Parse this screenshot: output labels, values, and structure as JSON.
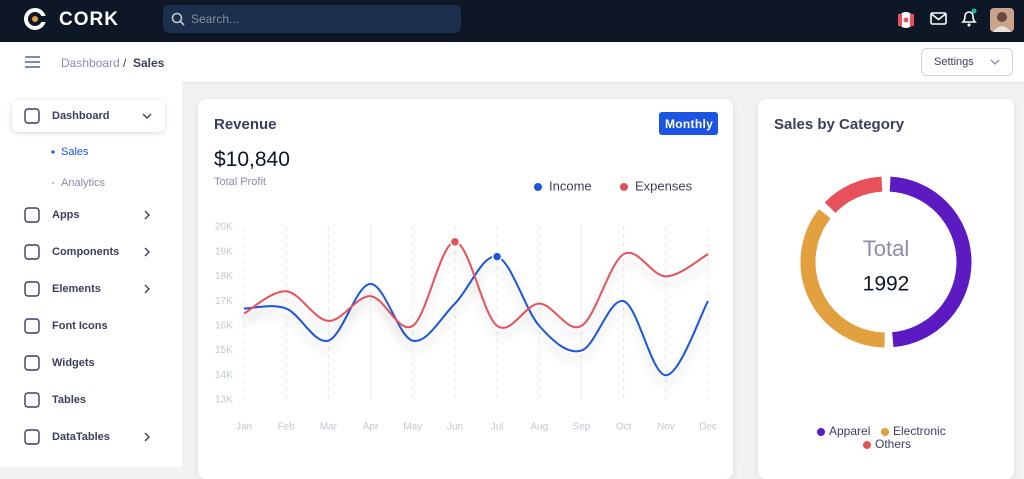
{
  "header": {
    "brand": "CORK",
    "search_placeholder": "Search..."
  },
  "subheader": {
    "breadcrumb": [
      "Dashboard",
      "Sales"
    ],
    "separator": "/",
    "settings_button": "Settings"
  },
  "sidebar": {
    "menu": [
      {
        "label": "Dashboard",
        "submenu": [
          "Sales",
          "Analytics"
        ]
      },
      {
        "label": "Apps"
      },
      {
        "label": "Components"
      },
      {
        "label": "Elements"
      },
      {
        "label": "Font Icons"
      },
      {
        "label": "Widgets"
      },
      {
        "label": "Tables"
      },
      {
        "label": "DataTables"
      }
    ]
  },
  "revenue_card": {
    "title": "Revenue",
    "button": "Monthly",
    "total": "$10,840",
    "total_label": "Total Profit"
  },
  "category_card": {
    "title": "Sales by Category"
  },
  "chart_data": [
    {
      "type": "line",
      "categories": [
        "Jan",
        "Feb",
        "Mar",
        "Apr",
        "May",
        "Jun",
        "Jul",
        "Aug",
        "Sep",
        "Oct",
        "Nov",
        "Dec"
      ],
      "series": [
        {
          "name": "Income",
          "color": "#1b55e2",
          "values": [
            16700,
            16700,
            15400,
            17700,
            15400,
            16900,
            18800,
            16000,
            15000,
            17000,
            14000,
            17000
          ]
        },
        {
          "name": "Expenses",
          "color": "#e7515a",
          "values": [
            16500,
            17400,
            16200,
            17200,
            16000,
            19400,
            16000,
            16900,
            16000,
            18900,
            18000,
            18900
          ]
        }
      ],
      "ylim": [
        13000,
        20000
      ],
      "yticks": [
        {
          "value": 13000,
          "label": "13K"
        },
        {
          "value": 14000,
          "label": "14K"
        },
        {
          "value": 15000,
          "label": "15K"
        },
        {
          "value": 16000,
          "label": "16K"
        },
        {
          "value": 17000,
          "label": "17K"
        },
        {
          "value": 18000,
          "label": "18K"
        },
        {
          "value": 19000,
          "label": "19K"
        },
        {
          "value": 20000,
          "label": "20K"
        }
      ],
      "xgrid": true,
      "legend": "top-right"
    },
    {
      "type": "donut",
      "categories": [
        "Apparel",
        "Electronic",
        "Others"
      ],
      "values": [
        985,
        737,
        270
      ],
      "colors": [
        "#5c1ac3",
        "#e2a03f",
        "#e7515a"
      ],
      "center_label": "Total",
      "total_value": 1992,
      "legend": "bottom"
    }
  ]
}
